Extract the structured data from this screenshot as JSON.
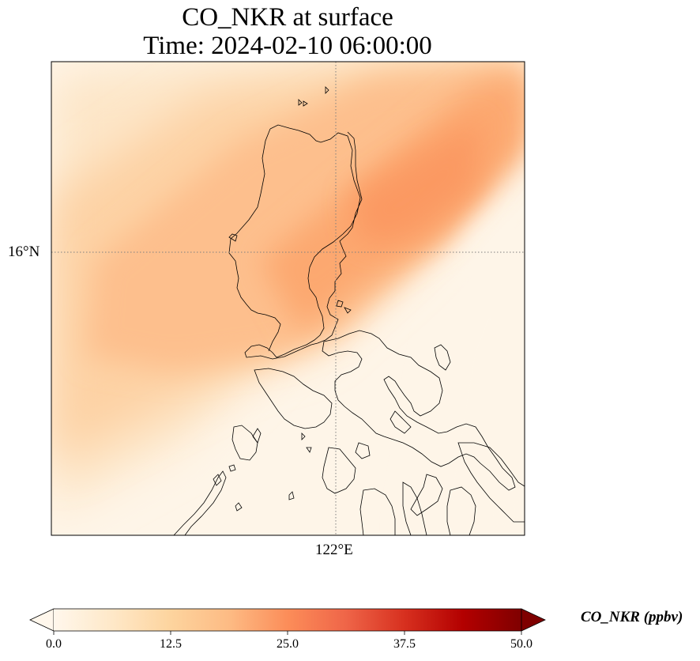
{
  "figure": {
    "title_line1": "CO_NKR at surface",
    "title_line2": "Time: 2024-02-10 06:00:00"
  },
  "map": {
    "projection": "PlateCarree",
    "coastline_color": "#000000",
    "gridline_style": "dotted",
    "lat_tick_label": "16°N",
    "lon_tick_label": "122°E",
    "field_colormap": "OrRd",
    "field_description_colors": {
      "background": "#fef5e8",
      "light": "#fde1bf",
      "medium": "#fdc08c",
      "peak": "#fb9b63"
    }
  },
  "colorbar": {
    "label": "CO_NKR (ppbv)",
    "min": 0.0,
    "max": 50.0,
    "extend": "both",
    "ticks": [
      "0.0",
      "12.5",
      "25.0",
      "37.5",
      "50.0"
    ],
    "colors": [
      "#fff7ec",
      "#fee8c8",
      "#fdd49e",
      "#fdbb84",
      "#fc8d59",
      "#ef6548",
      "#d7301f",
      "#b30000",
      "#7f0000"
    ]
  }
}
